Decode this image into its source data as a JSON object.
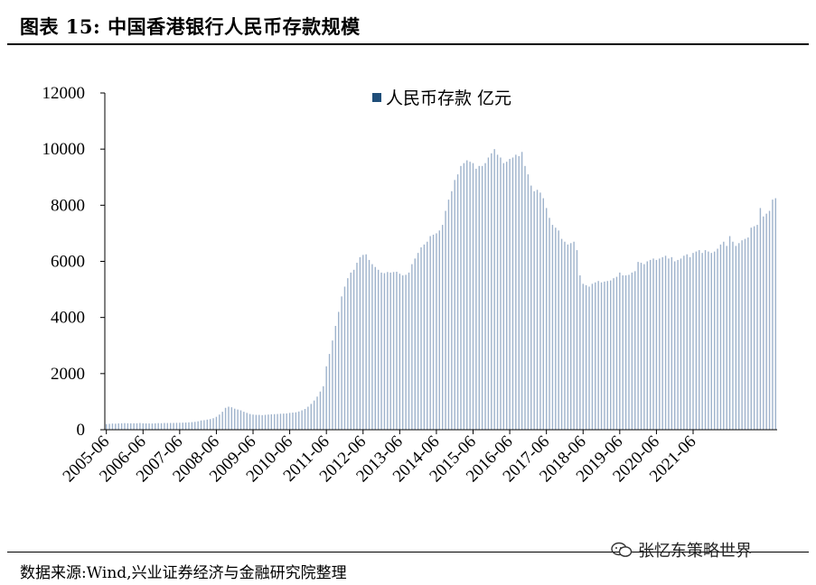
{
  "figure": {
    "title": "图表 15:  中国香港银行人民币存款规模",
    "source": "数据来源:Wind,兴业证券经济与金融研究院整理",
    "watermark": "张忆东策略世界",
    "watermark_icon": "wechat-icon"
  },
  "chart_data": {
    "type": "bar",
    "legend": "人民币存款 亿元",
    "legend_position": "top-center",
    "grid": false,
    "bar_color": "#9fb3cc",
    "legend_color": "#1f4e79",
    "ylim": [
      0,
      12000
    ],
    "yticks": [
      0,
      2000,
      4000,
      6000,
      8000,
      10000,
      12000
    ],
    "xtick_labels": [
      "2005-06",
      "2006-06",
      "2007-06",
      "2008-06",
      "2009-06",
      "2010-06",
      "2011-06",
      "2012-06",
      "2013-06",
      "2014-06",
      "2015-06",
      "2016-06",
      "2017-06",
      "2018-06",
      "2019-06",
      "2020-06",
      "2021-06"
    ],
    "x_start": "2005-06",
    "frequency": "monthly",
    "values": [
      200,
      210,
      220,
      215,
      225,
      230,
      235,
      230,
      228,
      230,
      230,
      240,
      230,
      225,
      225,
      222,
      228,
      235,
      232,
      240,
      238,
      240,
      242,
      245,
      248,
      252,
      255,
      262,
      270,
      280,
      300,
      330,
      340,
      360,
      380,
      410,
      460,
      540,
      640,
      780,
      820,
      800,
      750,
      720,
      690,
      640,
      600,
      560,
      540,
      530,
      530,
      520,
      530,
      540,
      550,
      555,
      560,
      570,
      575,
      580,
      600,
      610,
      620,
      650,
      690,
      740,
      820,
      920,
      1040,
      1180,
      1360,
      1550,
      2260,
      2700,
      3180,
      3700,
      4200,
      4750,
      5100,
      5400,
      5600,
      5700,
      5950,
      6150,
      6230,
      6250,
      6050,
      5900,
      5800,
      5700,
      5600,
      5580,
      5620,
      5600,
      5620,
      5630,
      5560,
      5500,
      5520,
      5600,
      5900,
      6100,
      6300,
      6500,
      6600,
      6700,
      6900,
      6950,
      7000,
      7100,
      7300,
      7800,
      8200,
      8500,
      8900,
      9100,
      9400,
      9500,
      9600,
      9550,
      9500,
      9300,
      9400,
      9400,
      9500,
      9700,
      9850,
      10000,
      9800,
      9700,
      9500,
      9550,
      9650,
      9700,
      9800,
      9750,
      9900,
      9400,
      9100,
      8700,
      8500,
      8550,
      8450,
      8250,
      7900,
      7550,
      7300,
      7200,
      7100,
      6800,
      6700,
      6600,
      6650,
      6700,
      6400,
      5500,
      5200,
      5150,
      5100,
      5200,
      5250,
      5300,
      5250,
      5280,
      5300,
      5320,
      5400,
      5450,
      5600,
      5500,
      5500,
      5520,
      5600,
      5650,
      5980,
      5950,
      5900,
      6000,
      6050,
      6100,
      6050,
      6100,
      6150,
      6200,
      6100,
      6150,
      6000,
      6050,
      6100,
      6200,
      6250,
      6150,
      6300,
      6350,
      6400,
      6300,
      6400,
      6350,
      6300,
      6350,
      6450,
      6600,
      6700,
      6550,
      6900,
      6700,
      6550,
      6650,
      6750,
      6800,
      6850,
      7200,
      7250,
      7300,
      7900,
      7600,
      7700,
      7800,
      8200,
      8250
    ]
  }
}
